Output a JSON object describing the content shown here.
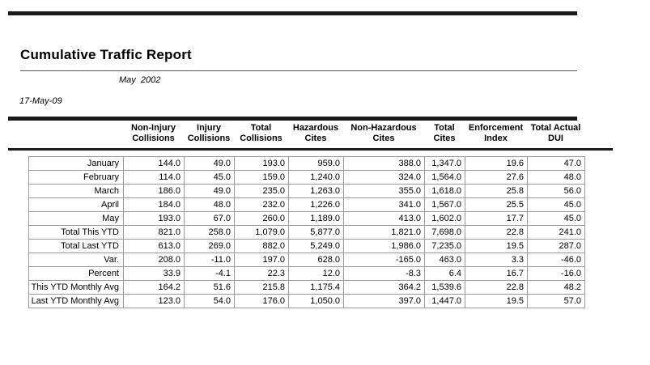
{
  "report": {
    "title": "Cumulative Traffic Report",
    "period": "May  2002",
    "print_date": "17-May-09"
  },
  "table": {
    "columns": [
      {
        "line1": "Non-Injury",
        "line2": "Collisions"
      },
      {
        "line1": "Injury",
        "line2": "Collisions"
      },
      {
        "line1": "Total",
        "line2": "Collisions"
      },
      {
        "line1": "Hazardous",
        "line2": "Cites"
      },
      {
        "line1": "Non-Hazardous",
        "line2": "Cites"
      },
      {
        "line1": "Total",
        "line2": "Cites"
      },
      {
        "line1": "Enforcement",
        "line2": "Index"
      },
      {
        "line1": "Total Actual",
        "line2": "DUI"
      }
    ],
    "rows": [
      {
        "label": "January",
        "values": [
          "144.0",
          "49.0",
          "193.0",
          "959.0",
          "388.0",
          "1,347.0",
          "19.6",
          "47.0"
        ]
      },
      {
        "label": "February",
        "values": [
          "114.0",
          "45.0",
          "159.0",
          "1,240.0",
          "324.0",
          "1,564.0",
          "27.6",
          "48.0"
        ]
      },
      {
        "label": "March",
        "values": [
          "186.0",
          "49.0",
          "235.0",
          "1,263.0",
          "355.0",
          "1,618.0",
          "25.8",
          "56.0"
        ]
      },
      {
        "label": "April",
        "values": [
          "184.0",
          "48.0",
          "232.0",
          "1,226.0",
          "341.0",
          "1,567.0",
          "25.5",
          "45.0"
        ]
      },
      {
        "label": "May",
        "values": [
          "193.0",
          "67.0",
          "260.0",
          "1,189.0",
          "413.0",
          "1,602.0",
          "17.7",
          "45.0"
        ]
      },
      {
        "label": "Total This YTD",
        "values": [
          "821.0",
          "258.0",
          "1,079.0",
          "5,877.0",
          "1,821.0",
          "7,698.0",
          "22.8",
          "241.0"
        ]
      },
      {
        "label": "Total Last YTD",
        "values": [
          "613.0",
          "269.0",
          "882.0",
          "5,249.0",
          "1,986.0",
          "7,235.0",
          "19.5",
          "287.0"
        ]
      },
      {
        "label": "Var.",
        "values": [
          "208.0",
          "-11.0",
          "197.0",
          "628.0",
          "-165.0",
          "463.0",
          "3.3",
          "-46.0"
        ]
      },
      {
        "label": "Percent",
        "values": [
          "33.9",
          "-4.1",
          "22.3",
          "12.0",
          "-8.3",
          "6.4",
          "16.7",
          "-16.0"
        ]
      },
      {
        "label": "This YTD Monthly Avg",
        "values": [
          "164.2",
          "51.6",
          "215.8",
          "1,175.4",
          "364.2",
          "1,539.6",
          "22.8",
          "48.2"
        ]
      },
      {
        "label": "Last YTD Monthly Avg",
        "values": [
          "123.0",
          "54.0",
          "176.0",
          "1,050.0",
          "397.0",
          "1,447.0",
          "19.5",
          "57.0"
        ]
      }
    ]
  },
  "colors": {
    "rule_black": "#1a1a1a",
    "cell_border": "#9a9a9a",
    "text": "#000000",
    "page_background": "#ffffff"
  }
}
